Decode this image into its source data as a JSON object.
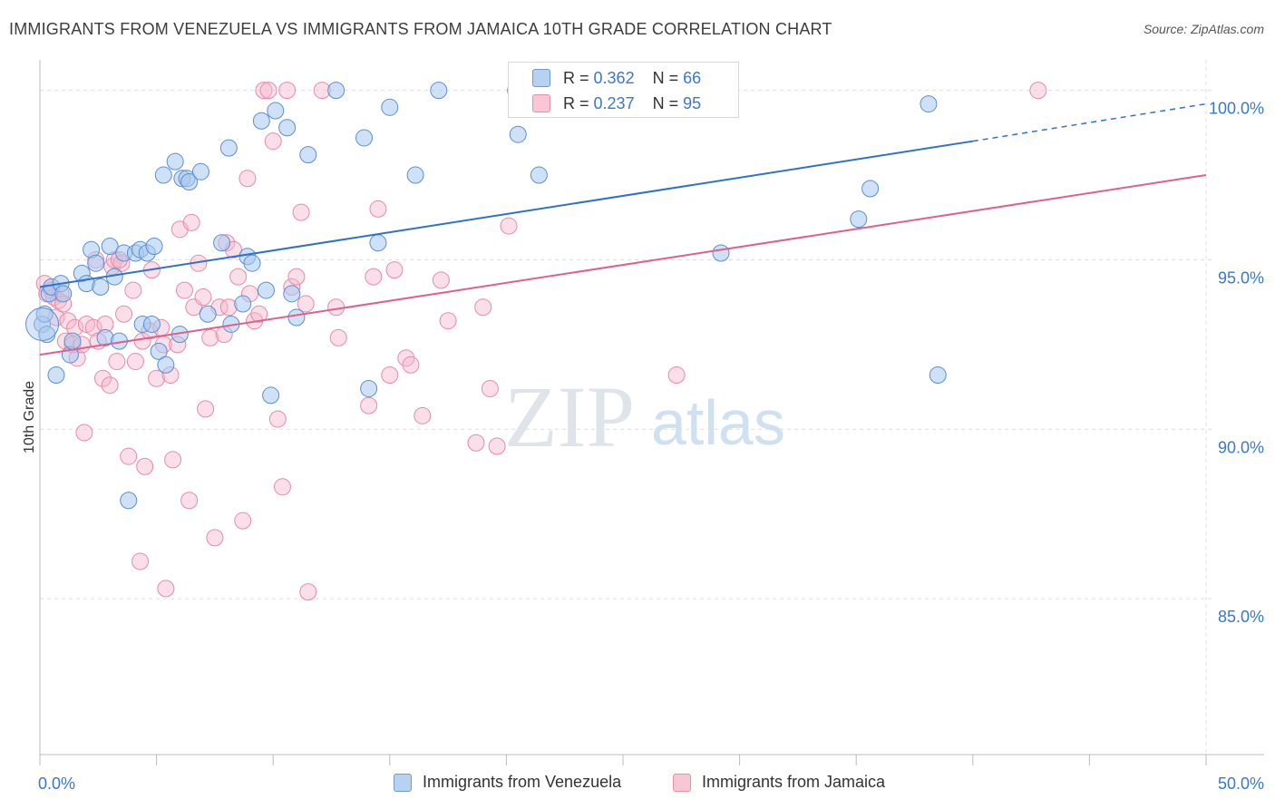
{
  "header": {
    "title": "IMMIGRANTS FROM VENEZUELA VS IMMIGRANTS FROM JAMAICA 10TH GRADE CORRELATION CHART",
    "source": "Source: ZipAtlas.com"
  },
  "legend": {
    "rows": [
      {
        "r_label": "R =",
        "r_value": "0.362",
        "n_label": "N =",
        "n_value": "66"
      },
      {
        "r_label": "R =",
        "r_value": "0.237",
        "n_label": "N =",
        "n_value": "95"
      }
    ]
  },
  "watermark": {
    "zip": "ZIP",
    "atlas": "atlas"
  },
  "colors": {
    "venezuela_fill": "#a8c8ee",
    "venezuela_stroke": "#5b8fd4",
    "venezuela_line": "#2f72cc",
    "jamaica_fill": "#f5b8cb",
    "jamaica_stroke": "#e68aa8",
    "jamaica_line": "#e0608a",
    "tick_label": "#3a78c9",
    "grid": "#dddddd"
  },
  "chart_data": {
    "type": "scatter",
    "title": "IMMIGRANTS FROM VENEZUELA VS IMMIGRANTS FROM JAMAICA 10TH GRADE CORRELATION CHART",
    "xlabel": "",
    "ylabel": "10th Grade",
    "xlim": [
      0,
      50
    ],
    "ylim": [
      80.4,
      100.9
    ],
    "x_tick_labels": [
      "0.0%",
      "50.0%"
    ],
    "y_ticks": [
      85,
      90,
      95,
      100
    ],
    "y_tick_labels": [
      "85.0%",
      "90.0%",
      "95.0%",
      "100.0%"
    ],
    "grid": true,
    "legend_position": "top-center",
    "series": [
      {
        "name": "Immigrants from Venezuela",
        "r": 0.362,
        "n": 66,
        "trend": {
          "x0": 0,
          "y0": 94.2,
          "x1": 40,
          "y1": 98.5,
          "dash_to_x": 50,
          "dash_to_y": 99.6
        },
        "points": [
          [
            0.1,
            93.1
          ],
          [
            0.3,
            92.8
          ],
          [
            0.4,
            94.0
          ],
          [
            0.5,
            94.2
          ],
          [
            0.7,
            91.6
          ],
          [
            0.9,
            94.3
          ],
          [
            1.0,
            94.0
          ],
          [
            1.3,
            92.2
          ],
          [
            1.4,
            92.6
          ],
          [
            1.8,
            94.6
          ],
          [
            2.0,
            94.3
          ],
          [
            2.2,
            95.3
          ],
          [
            2.4,
            94.9
          ],
          [
            2.6,
            94.2
          ],
          [
            2.8,
            92.7
          ],
          [
            3.0,
            95.4
          ],
          [
            3.2,
            94.5
          ],
          [
            3.4,
            92.6
          ],
          [
            3.6,
            95.2
          ],
          [
            3.8,
            87.9
          ],
          [
            4.1,
            95.2
          ],
          [
            4.3,
            95.3
          ],
          [
            4.4,
            93.1
          ],
          [
            4.6,
            95.2
          ],
          [
            4.8,
            93.1
          ],
          [
            4.9,
            95.4
          ],
          [
            5.1,
            92.3
          ],
          [
            5.3,
            97.5
          ],
          [
            5.4,
            91.9
          ],
          [
            5.8,
            97.9
          ],
          [
            6.0,
            92.8
          ],
          [
            6.1,
            97.4
          ],
          [
            6.3,
            97.4
          ],
          [
            6.4,
            97.3
          ],
          [
            6.9,
            97.6
          ],
          [
            7.2,
            93.4
          ],
          [
            7.8,
            95.5
          ],
          [
            8.1,
            98.3
          ],
          [
            8.2,
            93.1
          ],
          [
            8.7,
            93.7
          ],
          [
            8.9,
            95.1
          ],
          [
            9.1,
            94.9
          ],
          [
            9.5,
            99.1
          ],
          [
            9.7,
            94.1
          ],
          [
            9.9,
            91.0
          ],
          [
            10.1,
            99.4
          ],
          [
            10.6,
            98.9
          ],
          [
            10.8,
            94.0
          ],
          [
            11.0,
            93.3
          ],
          [
            11.5,
            98.1
          ],
          [
            12.7,
            100.0
          ],
          [
            13.9,
            98.6
          ],
          [
            14.1,
            91.2
          ],
          [
            14.5,
            95.5
          ],
          [
            15.0,
            99.5
          ],
          [
            16.1,
            97.5
          ],
          [
            17.1,
            100.0
          ],
          [
            20.5,
            98.7
          ],
          [
            20.4,
            100.0
          ],
          [
            21.4,
            97.5
          ],
          [
            29.2,
            95.2
          ],
          [
            35.1,
            96.2
          ],
          [
            35.6,
            97.1
          ],
          [
            38.1,
            99.6
          ],
          [
            38.5,
            91.6
          ],
          [
            0.2,
            93.4
          ]
        ]
      },
      {
        "name": "Immigrants from Jamaica",
        "r": 0.237,
        "n": 95,
        "trend": {
          "x0": 0,
          "y0": 92.2,
          "x1": 50,
          "y1": 97.5
        },
        "points": [
          [
            0.2,
            94.3
          ],
          [
            0.3,
            94.0
          ],
          [
            0.5,
            94.1
          ],
          [
            0.6,
            93.9
          ],
          [
            0.7,
            93.3
          ],
          [
            0.8,
            93.8
          ],
          [
            0.9,
            94.0
          ],
          [
            1.0,
            93.7
          ],
          [
            1.1,
            92.6
          ],
          [
            1.2,
            93.2
          ],
          [
            1.4,
            92.5
          ],
          [
            1.5,
            93.0
          ],
          [
            1.6,
            92.1
          ],
          [
            1.8,
            92.5
          ],
          [
            1.9,
            89.9
          ],
          [
            2.0,
            93.1
          ],
          [
            2.3,
            93.0
          ],
          [
            2.4,
            95.0
          ],
          [
            2.5,
            92.6
          ],
          [
            2.7,
            91.5
          ],
          [
            2.8,
            93.1
          ],
          [
            3.0,
            91.3
          ],
          [
            3.1,
            94.8
          ],
          [
            3.2,
            95.0
          ],
          [
            3.3,
            92.0
          ],
          [
            3.5,
            94.9
          ],
          [
            3.6,
            93.4
          ],
          [
            3.8,
            89.2
          ],
          [
            4.0,
            94.1
          ],
          [
            4.1,
            92.0
          ],
          [
            4.3,
            86.1
          ],
          [
            4.4,
            92.6
          ],
          [
            4.5,
            88.9
          ],
          [
            4.7,
            92.9
          ],
          [
            4.8,
            94.7
          ],
          [
            5.0,
            91.5
          ],
          [
            5.2,
            93.0
          ],
          [
            5.3,
            92.5
          ],
          [
            5.4,
            85.3
          ],
          [
            5.6,
            91.6
          ],
          [
            5.7,
            89.1
          ],
          [
            5.9,
            92.5
          ],
          [
            6.0,
            95.9
          ],
          [
            6.2,
            94.1
          ],
          [
            6.4,
            87.9
          ],
          [
            6.5,
            96.1
          ],
          [
            6.6,
            93.6
          ],
          [
            6.8,
            94.9
          ],
          [
            7.0,
            93.9
          ],
          [
            7.1,
            90.6
          ],
          [
            7.3,
            92.7
          ],
          [
            7.5,
            86.8
          ],
          [
            7.7,
            93.6
          ],
          [
            7.9,
            92.8
          ],
          [
            8.0,
            95.5
          ],
          [
            8.1,
            93.6
          ],
          [
            8.3,
            95.3
          ],
          [
            8.5,
            94.5
          ],
          [
            8.7,
            87.3
          ],
          [
            8.9,
            97.4
          ],
          [
            9.0,
            94.0
          ],
          [
            9.2,
            93.2
          ],
          [
            9.4,
            93.4
          ],
          [
            9.6,
            100.0
          ],
          [
            9.8,
            100.0
          ],
          [
            10.0,
            98.5
          ],
          [
            10.2,
            90.3
          ],
          [
            10.4,
            88.3
          ],
          [
            10.6,
            100.0
          ],
          [
            10.8,
            94.2
          ],
          [
            11.0,
            94.5
          ],
          [
            11.2,
            96.4
          ],
          [
            11.4,
            93.7
          ],
          [
            11.5,
            85.2
          ],
          [
            12.1,
            100.0
          ],
          [
            12.7,
            93.6
          ],
          [
            12.8,
            92.7
          ],
          [
            14.1,
            90.7
          ],
          [
            14.3,
            94.5
          ],
          [
            14.5,
            96.5
          ],
          [
            15.0,
            91.6
          ],
          [
            15.2,
            94.7
          ],
          [
            15.7,
            92.1
          ],
          [
            15.9,
            91.9
          ],
          [
            16.4,
            90.4
          ],
          [
            17.2,
            94.4
          ],
          [
            17.5,
            93.2
          ],
          [
            18.7,
            89.6
          ],
          [
            19.0,
            93.6
          ],
          [
            19.3,
            91.2
          ],
          [
            19.6,
            89.5
          ],
          [
            20.1,
            96.0
          ],
          [
            27.3,
            91.6
          ],
          [
            42.8,
            100.0
          ],
          [
            3.4,
            95.0
          ]
        ]
      }
    ]
  },
  "bottom_legend": {
    "venezuela_label": "Immigrants from Venezuela",
    "jamaica_label": "Immigrants from Jamaica"
  }
}
